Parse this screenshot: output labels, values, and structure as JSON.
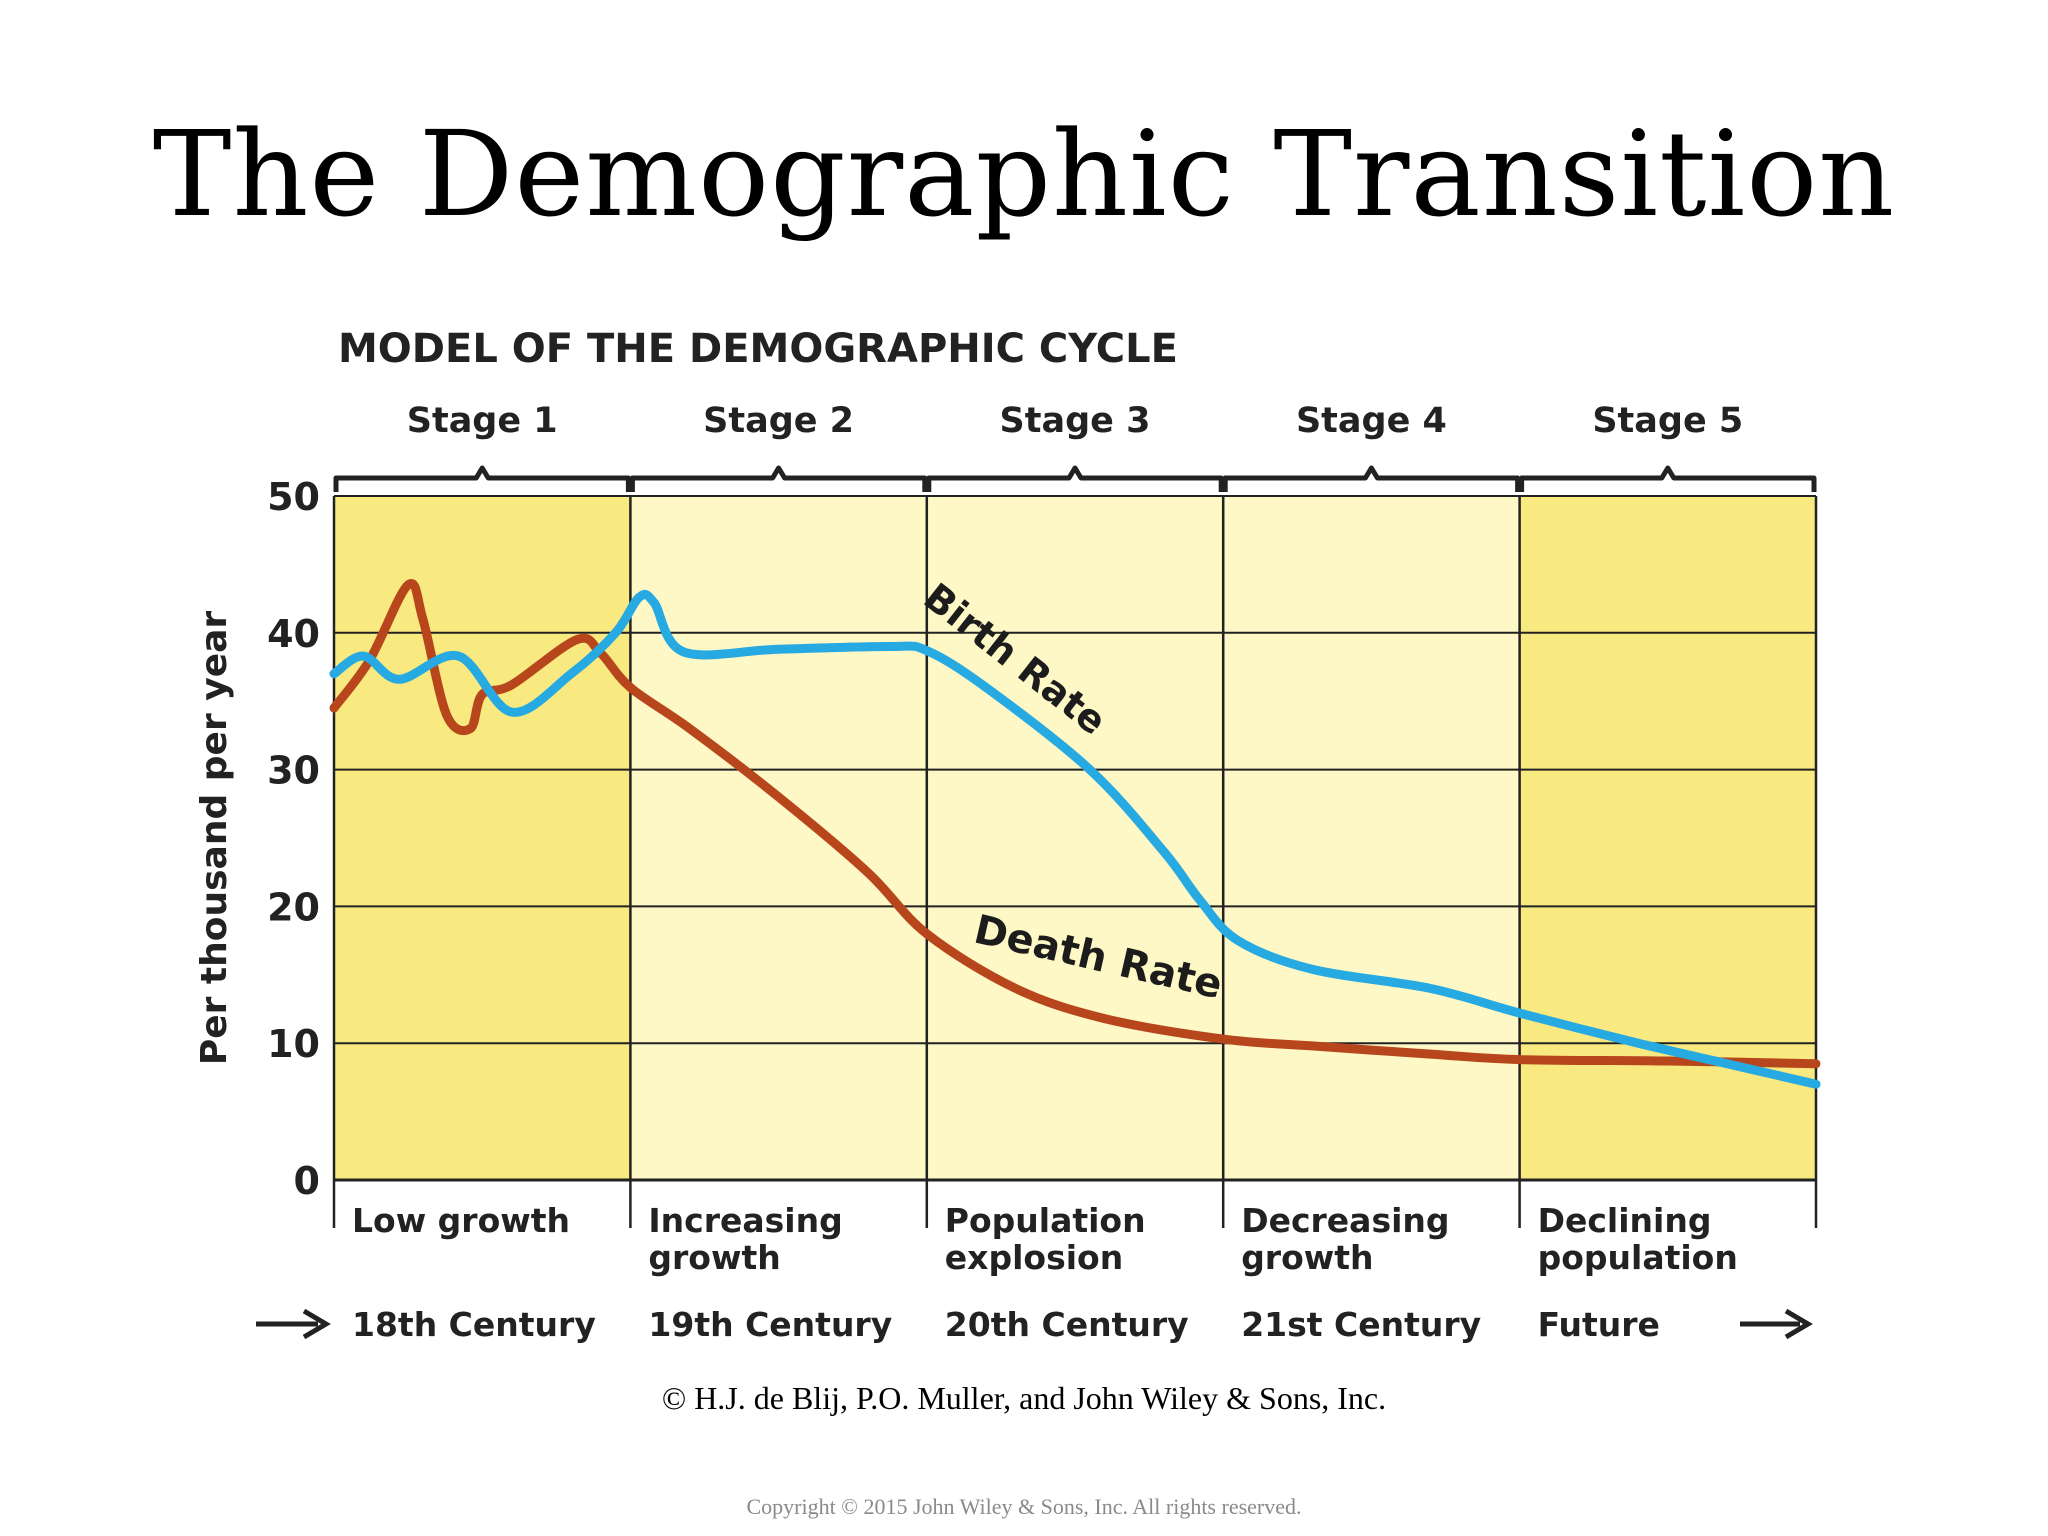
{
  "slide": {
    "title": "The Demographic Transition",
    "credit": "© H.J. de Blij, P.O. Muller, and John Wiley & Sons, Inc.",
    "copyright": "Copyright © 2015 John Wiley & Sons, Inc. All rights reserved."
  },
  "chart_data": {
    "type": "line",
    "title": "MODEL OF THE DEMOGRAPHIC CYCLE",
    "ylabel": "Per thousand per year",
    "ylim": [
      0,
      50
    ],
    "yticks": [
      0,
      10,
      20,
      30,
      40,
      50
    ],
    "xlim": [
      0,
      5
    ],
    "grid": true,
    "stages": [
      {
        "label": "Stage 1",
        "description": "Low growth",
        "era": "18th Century",
        "highlight": true
      },
      {
        "label": "Stage 2",
        "description": "Increasing growth",
        "era": "19th Century",
        "highlight": false
      },
      {
        "label": "Stage 3",
        "description": "Population explosion",
        "era": "20th Century",
        "highlight": false
      },
      {
        "label": "Stage 4",
        "description": "Decreasing growth",
        "era": "21st Century",
        "highlight": false
      },
      {
        "label": "Stage 5",
        "description": "Declining population",
        "era": "Future",
        "highlight": true
      }
    ],
    "series": [
      {
        "name": "Birth Rate",
        "color": "#27a9e1",
        "x": [
          0,
          0.1,
          0.22,
          0.42,
          0.6,
          0.8,
          0.95,
          1.03,
          1.08,
          1.18,
          1.5,
          1.88,
          2.0,
          2.2,
          2.55,
          2.8,
          2.92,
          3.05,
          3.3,
          3.7,
          4.0,
          4.4,
          4.7,
          5.0
        ],
        "values": [
          37,
          38.3,
          36.6,
          38.3,
          34.2,
          37,
          40,
          42.6,
          42.2,
          38.6,
          38.8,
          39,
          38.7,
          36,
          30,
          24,
          20.5,
          17.5,
          15.4,
          14,
          12.2,
          10,
          8.5,
          7
        ]
      },
      {
        "name": "Death Rate",
        "color": "#b8461c",
        "x": [
          0,
          0.12,
          0.25,
          0.3,
          0.38,
          0.46,
          0.5,
          0.6,
          0.82,
          0.9,
          1.0,
          1.2,
          1.5,
          1.8,
          2.0,
          2.3,
          2.6,
          3.0,
          3.3,
          3.7,
          4.0,
          4.5,
          5.0
        ],
        "values": [
          34.5,
          38,
          43.5,
          41,
          34,
          33,
          35.5,
          36.2,
          39.5,
          38.5,
          36,
          33,
          28,
          22.5,
          18,
          14,
          11.8,
          10.3,
          9.8,
          9.2,
          8.8,
          8.7,
          8.5
        ]
      }
    ],
    "annotations": [
      {
        "text": "Birth Rate",
        "series": "Birth Rate"
      },
      {
        "text": "Death  Rate",
        "series": "Death Rate"
      }
    ]
  }
}
